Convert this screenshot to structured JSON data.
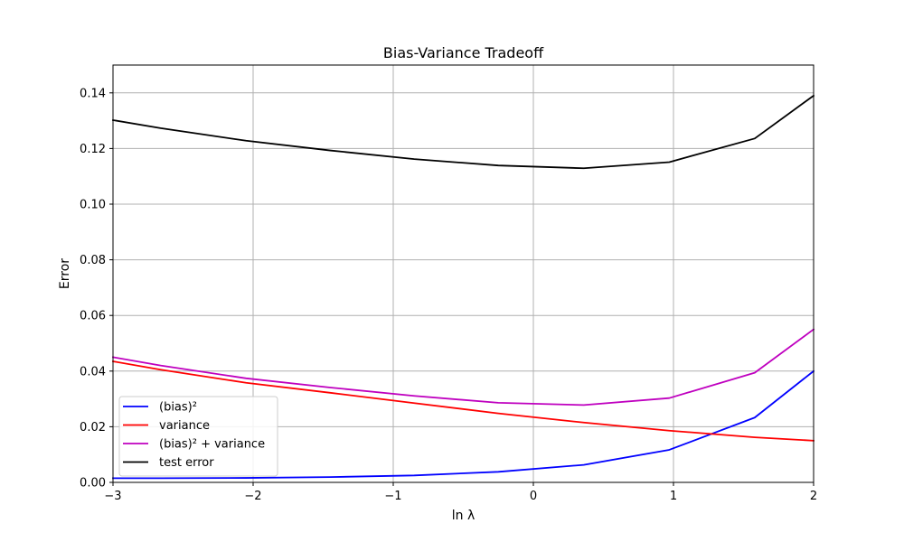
{
  "chart_data": {
    "type": "line",
    "title": "Bias-Variance Tradeoff",
    "xlabel": "ln λ",
    "ylabel": "Error",
    "xlim": [
      -3,
      2
    ],
    "ylim": [
      0,
      0.15
    ],
    "x_ticks": [
      -3,
      -2,
      -1,
      0,
      1,
      2
    ],
    "x_tick_labels": [
      "−3",
      "−2",
      "−1",
      "0",
      "1",
      "2"
    ],
    "y_ticks": [
      0,
      0.02,
      0.04,
      0.06,
      0.08,
      0.1,
      0.12,
      0.14
    ],
    "y_tick_labels": [
      "0.00",
      "0.02",
      "0.04",
      "0.06",
      "0.08",
      "0.10",
      "0.12",
      "0.14"
    ],
    "grid": true,
    "legend_position": "lower-left",
    "x": [
      -3,
      -2.66,
      -2.05,
      -1.45,
      -0.85,
      -0.25,
      0.36,
      0.97,
      1.58,
      2
    ],
    "series": [
      {
        "name": "(bias)²",
        "color": "#0000ff",
        "values": [
          0.0015,
          0.0015,
          0.0016,
          0.0019,
          0.0025,
          0.0038,
          0.0063,
          0.0117,
          0.0233,
          0.04
        ]
      },
      {
        "name": "variance",
        "color": "#ff0000",
        "values": [
          0.0435,
          0.0405,
          0.0358,
          0.0322,
          0.0285,
          0.0248,
          0.0215,
          0.0186,
          0.0162,
          0.015
        ]
      },
      {
        "name": "(bias)² + variance",
        "color": "#bf00bf",
        "values": [
          0.045,
          0.042,
          0.0374,
          0.0341,
          0.0311,
          0.0286,
          0.0278,
          0.0303,
          0.0394,
          0.055
        ]
      },
      {
        "name": "test error",
        "color": "#000000",
        "values": [
          0.1302,
          0.1273,
          0.1228,
          0.1193,
          0.1162,
          0.1139,
          0.1129,
          0.1151,
          0.1236,
          0.139
        ]
      }
    ]
  }
}
